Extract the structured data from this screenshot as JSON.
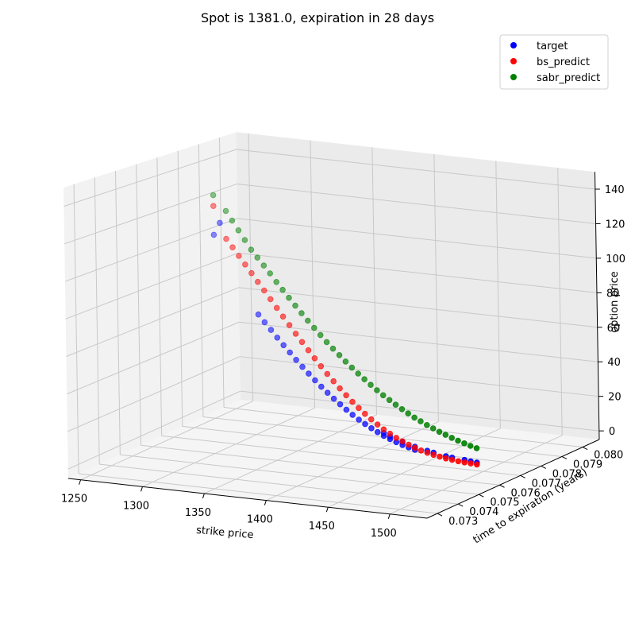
{
  "chart_data": {
    "type": "scatter",
    "title": "Spot is 1381.0, expiration in 28 days",
    "xlabel": "strike price",
    "ylabel": "time to expiration (years)",
    "zlabel": "option price",
    "xlim": [
      1240,
      1530
    ],
    "ylim": [
      0.0725,
      0.0808
    ],
    "zlim": [
      -5,
      150
    ],
    "x_ticks": [
      1250,
      1300,
      1350,
      1400,
      1450,
      1500
    ],
    "y_ticks": [
      0.073,
      0.074,
      0.075,
      0.076,
      0.077,
      0.078,
      0.079,
      0.08
    ],
    "y_tick_labels": [
      "0.073",
      "0.074",
      "0.075",
      "0.076",
      "0.077",
      "0.078",
      "0.079",
      "0.080"
    ],
    "z_ticks": [
      0,
      20,
      40,
      60,
      80,
      100,
      120,
      140
    ],
    "grid": true,
    "legend_position": "top-right",
    "colors": {
      "target": "#0000ff",
      "bs_predict": "#ff0000",
      "sabr_predict": "#008000"
    },
    "series": [
      {
        "name": "target",
        "points": [
          [
            1290,
            0.0767,
            112
          ],
          [
            1295,
            0.0767,
            119
          ],
          [
            1325,
            0.0767,
            70.4
          ],
          [
            1330,
            0.0767,
            66.5
          ],
          [
            1335,
            0.0767,
            62.6
          ],
          [
            1340,
            0.0767,
            58.7
          ],
          [
            1345,
            0.0767,
            54.9
          ],
          [
            1350,
            0.0767,
            51.2
          ],
          [
            1355,
            0.0767,
            47.5
          ],
          [
            1360,
            0.0767,
            44.0
          ],
          [
            1365,
            0.0767,
            40.6
          ],
          [
            1370,
            0.0767,
            37.3
          ],
          [
            1375,
            0.0767,
            34.1
          ],
          [
            1380,
            0.0767,
            31.1
          ],
          [
            1385,
            0.0767,
            28.2
          ],
          [
            1390,
            0.0767,
            25.5
          ],
          [
            1395,
            0.0767,
            22.8
          ],
          [
            1400,
            0.0767,
            20.4
          ],
          [
            1405,
            0.0767,
            18.1
          ],
          [
            1410,
            0.0767,
            16.0
          ],
          [
            1415,
            0.0767,
            14.1
          ],
          [
            1420,
            0.0767,
            12.3
          ],
          [
            1425,
            0.0767,
            10.6
          ],
          [
            1430,
            0.0767,
            9.2
          ],
          [
            1435,
            0.0767,
            7.9
          ],
          [
            1440,
            0.0767,
            6.7
          ],
          [
            1445,
            0.0767,
            5.7
          ],
          [
            1450,
            0.0767,
            4.8
          ],
          [
            1425,
            0.0767,
            12.2
          ],
          [
            1430,
            0.0767,
            10.6
          ],
          [
            1440,
            0.0767,
            8.4
          ],
          [
            1450,
            0.0767,
            6.5
          ],
          [
            1460,
            0.0767,
            5.0
          ],
          [
            1465,
            0.0767,
            4.3
          ],
          [
            1475,
            0.0767,
            3.1
          ],
          [
            1480,
            0.0767,
            2.7
          ],
          [
            1490,
            0.0767,
            2.2
          ],
          [
            1495,
            0.0767,
            1.8
          ],
          [
            1500,
            0.0767,
            1.5
          ]
        ]
      },
      {
        "name": "bs_predict",
        "points": [
          [
            1290,
            0.0767,
            128
          ],
          [
            1300,
            0.0767,
            110.5
          ],
          [
            1305,
            0.0767,
            106.2
          ],
          [
            1310,
            0.0767,
            101.8
          ],
          [
            1315,
            0.0767,
            97.4
          ],
          [
            1320,
            0.0767,
            93.0
          ],
          [
            1325,
            0.0767,
            88.5
          ],
          [
            1330,
            0.0767,
            84.1
          ],
          [
            1335,
            0.0767,
            79.7
          ],
          [
            1340,
            0.0767,
            75.2
          ],
          [
            1345,
            0.0767,
            70.8
          ],
          [
            1350,
            0.0767,
            66.4
          ],
          [
            1355,
            0.0767,
            62.0
          ],
          [
            1360,
            0.0767,
            57.8
          ],
          [
            1365,
            0.0767,
            53.6
          ],
          [
            1370,
            0.0767,
            49.5
          ],
          [
            1375,
            0.0767,
            45.5
          ],
          [
            1380,
            0.0767,
            41.6
          ],
          [
            1385,
            0.0767,
            37.9
          ],
          [
            1390,
            0.0767,
            34.3
          ],
          [
            1395,
            0.0767,
            30.9
          ],
          [
            1400,
            0.0767,
            27.6
          ],
          [
            1405,
            0.0767,
            24.6
          ],
          [
            1410,
            0.0767,
            21.7
          ],
          [
            1415,
            0.0767,
            19.0
          ],
          [
            1420,
            0.0767,
            16.5
          ],
          [
            1425,
            0.0767,
            14.2
          ],
          [
            1430,
            0.0767,
            12.2
          ],
          [
            1435,
            0.0767,
            10.3
          ],
          [
            1440,
            0.0767,
            8.7
          ],
          [
            1445,
            0.0767,
            7.2
          ],
          [
            1450,
            0.0767,
            5.9
          ],
          [
            1455,
            0.0767,
            4.8
          ],
          [
            1460,
            0.0767,
            3.9
          ],
          [
            1465,
            0.0767,
            3.1
          ],
          [
            1470,
            0.0767,
            2.5
          ],
          [
            1475,
            0.0767,
            1.9
          ],
          [
            1480,
            0.0767,
            1.5
          ],
          [
            1485,
            0.0767,
            1.1
          ],
          [
            1490,
            0.0767,
            0.85
          ],
          [
            1495,
            0.0767,
            0.62
          ],
          [
            1500,
            0.0767,
            0.45
          ]
        ]
      },
      {
        "name": "sabr_predict",
        "points": [
          [
            1290,
            0.0767,
            134
          ],
          [
            1300,
            0.0767,
            126
          ],
          [
            1305,
            0.0767,
            121
          ],
          [
            1310,
            0.0767,
            116
          ],
          [
            1315,
            0.0767,
            111
          ],
          [
            1320,
            0.0767,
            106
          ],
          [
            1325,
            0.0767,
            102
          ],
          [
            1330,
            0.0767,
            98
          ],
          [
            1335,
            0.0767,
            94
          ],
          [
            1340,
            0.0767,
            89.6
          ],
          [
            1345,
            0.0767,
            85.6
          ],
          [
            1350,
            0.0767,
            81.6
          ],
          [
            1355,
            0.0767,
            77.6
          ],
          [
            1360,
            0.0767,
            73.8
          ],
          [
            1365,
            0.0767,
            70.0
          ],
          [
            1370,
            0.0767,
            66.4
          ],
          [
            1375,
            0.0767,
            62.8
          ],
          [
            1380,
            0.0767,
            59.3
          ],
          [
            1385,
            0.0767,
            56.0
          ],
          [
            1390,
            0.0767,
            52.8
          ],
          [
            1395,
            0.0767,
            49.6
          ],
          [
            1400,
            0.0767,
            46.6
          ],
          [
            1405,
            0.0767,
            43.7
          ],
          [
            1410,
            0.0767,
            40.9
          ],
          [
            1415,
            0.0767,
            38.2
          ],
          [
            1420,
            0.0767,
            35.6
          ],
          [
            1425,
            0.0767,
            33.2
          ],
          [
            1430,
            0.0767,
            30.9
          ],
          [
            1435,
            0.0767,
            28.7
          ],
          [
            1440,
            0.0767,
            26.6
          ],
          [
            1445,
            0.0767,
            24.6
          ],
          [
            1450,
            0.0767,
            22.7
          ],
          [
            1455,
            0.0767,
            21.0
          ],
          [
            1460,
            0.0767,
            19.3
          ],
          [
            1465,
            0.0767,
            17.8
          ],
          [
            1470,
            0.0767,
            16.3
          ],
          [
            1475,
            0.0767,
            15.0
          ],
          [
            1480,
            0.0767,
            13.7
          ],
          [
            1485,
            0.0767,
            12.5
          ],
          [
            1490,
            0.0767,
            11.4
          ],
          [
            1495,
            0.0767,
            10.4
          ],
          [
            1500,
            0.0767,
            9.5
          ]
        ]
      }
    ]
  }
}
